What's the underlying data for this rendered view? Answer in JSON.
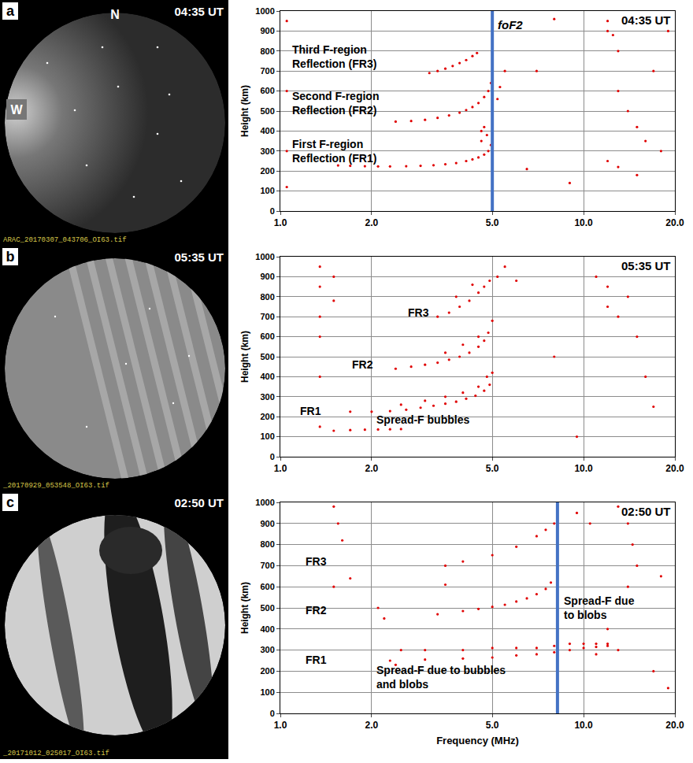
{
  "images": [
    {
      "panel": "a",
      "time": "04:35 UT",
      "north": "N",
      "west": "W",
      "file": "ARAC_20170307_043706_OI63.tif"
    },
    {
      "panel": "b",
      "time": "05:35 UT",
      "file": "_20170929_053548_OI63.tif"
    },
    {
      "panel": "c",
      "time": "02:50 UT",
      "file": "_20171012_025017_OI63.tif"
    }
  ],
  "chart_data": [
    {
      "type": "scatter",
      "time": "04:35 UT",
      "y_label": "Height (km)",
      "log": "x",
      "grid": true,
      "xlim": [
        1,
        20
      ],
      "xticks": [
        {
          "value": 1,
          "label": "1.0"
        },
        {
          "value": 2,
          "label": "2.0"
        },
        {
          "value": 5,
          "label": "5.0"
        },
        {
          "value": 10,
          "label": "10.0"
        },
        {
          "value": 20,
          "label": "20.0"
        }
      ],
      "ylim": [
        0,
        1000
      ],
      "yticks": [
        0,
        100,
        200,
        300,
        400,
        500,
        600,
        700,
        800,
        900,
        1000
      ],
      "series": [
        {
          "color": "#e00000",
          "marker": "dot",
          "x": [
            1.55,
            1.7,
            1.9,
            2.1,
            2.3,
            2.6,
            2.9,
            3.2,
            3.5,
            3.8,
            4.1,
            4.3,
            4.5,
            4.7,
            4.85,
            4.95
          ],
          "values": [
            228,
            226,
            224,
            223,
            223,
            224,
            226,
            229,
            234,
            240,
            250,
            258,
            268,
            282,
            300,
            330
          ]
        },
        {
          "color": "#e00000",
          "marker": "dot",
          "x": [
            2.4,
            2.7,
            3.0,
            3.3,
            3.6,
            3.9,
            4.1,
            4.3,
            4.5,
            4.7,
            4.85,
            4.95
          ],
          "values": [
            447,
            450,
            456,
            466,
            478,
            492,
            505,
            520,
            540,
            570,
            600,
            640
          ]
        },
        {
          "color": "#e00000",
          "marker": "dot",
          "x": [
            3.1,
            3.3,
            3.5,
            3.7,
            3.9,
            4.1,
            4.3,
            4.45
          ],
          "values": [
            690,
            700,
            712,
            725,
            740,
            755,
            775,
            790
          ]
        },
        {
          "color": "#e00000",
          "marker": "dot",
          "x": [
            1.05,
            1.05,
            1.05,
            1.05,
            4.6,
            4.6,
            4.7,
            4.8,
            5.2,
            5.3,
            5.5,
            12,
            12,
            12.5,
            13,
            13,
            14,
            15,
            16,
            12,
            13,
            15,
            17,
            18,
            19,
            8,
            9,
            7,
            6.5
          ],
          "values": [
            950,
            600,
            300,
            120,
            350,
            400,
            420,
            380,
            560,
            620,
            700,
            950,
            900,
            880,
            800,
            600,
            500,
            420,
            350,
            250,
            220,
            180,
            700,
            300,
            900,
            960,
            140,
            700,
            210
          ]
        }
      ],
      "annotations": [
        {
          "lines": [
            "Third F-region",
            "Reflection (FR3)"
          ],
          "x": 1.08,
          "y": 770
        },
        {
          "lines": [
            "Second F-region",
            "Reflection (FR2)"
          ],
          "x": 1.08,
          "y": 540
        },
        {
          "lines": [
            "First F-region",
            "Reflection (FR1)"
          ],
          "x": 1.08,
          "y": 300
        }
      ],
      "vlines": [
        {
          "x": 5.0,
          "label": "foF2",
          "color": "#4472c4"
        }
      ]
    },
    {
      "type": "scatter",
      "time": "05:35 UT",
      "y_label": "Height (km)",
      "log": "x",
      "grid": true,
      "xlim": [
        1,
        20
      ],
      "xticks": [
        {
          "value": 1,
          "label": "1.0"
        },
        {
          "value": 2,
          "label": "2.0"
        },
        {
          "value": 5,
          "label": "5.0"
        },
        {
          "value": 10,
          "label": "10.0"
        },
        {
          "value": 20,
          "label": "20.0"
        }
      ],
      "ylim": [
        0,
        1000
      ],
      "yticks": [
        0,
        100,
        200,
        300,
        400,
        500,
        600,
        700,
        800,
        900,
        1000
      ],
      "series": [
        {
          "color": "#e00000",
          "marker": "dot",
          "x": [
            1.7,
            2.0,
            2.3,
            2.6,
            2.9,
            3.2,
            3.5,
            3.8,
            4.1,
            4.4,
            4.7,
            4.9,
            5.0,
            2.5,
            3.0,
            3.5,
            4.0,
            4.5,
            4.8
          ],
          "values": [
            225,
            225,
            228,
            235,
            245,
            255,
            265,
            275,
            290,
            305,
            330,
            360,
            420,
            260,
            280,
            300,
            320,
            350,
            400
          ]
        },
        {
          "color": "#e00000",
          "marker": "dot",
          "x": [
            1.5,
            1.7,
            1.9,
            2.1,
            2.3,
            2.5
          ],
          "values": [
            130,
            133,
            135,
            136,
            137,
            138
          ]
        },
        {
          "color": "#e00000",
          "marker": "dot",
          "x": [
            2.4,
            2.7,
            3.0,
            3.3,
            3.6,
            3.9,
            4.2,
            4.5,
            4.7,
            4.85,
            5.0,
            3.5,
            4.0,
            4.5
          ],
          "values": [
            440,
            450,
            460,
            470,
            485,
            500,
            520,
            550,
            580,
            620,
            680,
            520,
            560,
            600
          ]
        },
        {
          "color": "#e00000",
          "marker": "dot",
          "x": [
            3.3,
            3.6,
            3.9,
            4.2,
            4.5,
            4.7,
            4.9,
            3.8,
            4.3
          ],
          "values": [
            700,
            720,
            750,
            780,
            820,
            850,
            880,
            800,
            860
          ]
        },
        {
          "color": "#e00000",
          "marker": "dot",
          "x": [
            1.35,
            1.35,
            1.35,
            1.35,
            1.35,
            1.35,
            1.5,
            1.5,
            5.2,
            5.5,
            11,
            12,
            12,
            13,
            14,
            15,
            16,
            17,
            9.5,
            8,
            6
          ],
          "values": [
            950,
            850,
            700,
            600,
            400,
            150,
            900,
            780,
            900,
            950,
            900,
            850,
            750,
            700,
            800,
            600,
            400,
            250,
            100,
            500,
            880
          ]
        }
      ],
      "annotations": [
        {
          "lines": [
            "FR3"
          ],
          "x": 2.6,
          "y": 720
        },
        {
          "lines": [
            "FR2"
          ],
          "x": 1.7,
          "y": 460
        },
        {
          "lines": [
            "FR1"
          ],
          "x": 1.15,
          "y": 230
        },
        {
          "lines": [
            "Spread-F bubbles"
          ],
          "x": 2.05,
          "y": 185
        }
      ]
    },
    {
      "type": "scatter",
      "time": "02:50 UT",
      "y_label": "Height (km)",
      "x_label": "Frequency (MHz)",
      "log": "x",
      "grid": true,
      "xlim": [
        1,
        20
      ],
      "xticks": [
        {
          "value": 1,
          "label": "1.0"
        },
        {
          "value": 2,
          "label": "2.0"
        },
        {
          "value": 5,
          "label": "5.0"
        },
        {
          "value": 10,
          "label": "10.0"
        },
        {
          "value": 20,
          "label": "20.0"
        }
      ],
      "ylim": [
        0,
        1000
      ],
      "yticks": [
        0,
        100,
        200,
        300,
        400,
        500,
        600,
        700,
        800,
        900,
        1000
      ],
      "series": [
        {
          "color": "#e00000",
          "marker": "dot",
          "x": [
            2.3,
            3,
            4,
            5,
            6,
            7,
            8,
            9,
            10,
            11,
            12,
            2.5,
            3,
            4,
            5,
            6,
            7,
            8,
            9,
            10,
            11,
            2.4
          ],
          "values": [
            250,
            255,
            260,
            265,
            275,
            280,
            290,
            300,
            310,
            315,
            320,
            300,
            300,
            300,
            310,
            310,
            310,
            320,
            330,
            330,
            330,
            230
          ]
        },
        {
          "color": "#e00000",
          "marker": "dot",
          "x": [
            3.3,
            4,
            4.5,
            5,
            5.5,
            6,
            6.5,
            7,
            7.5,
            7.8
          ],
          "values": [
            470,
            485,
            495,
            505,
            515,
            530,
            545,
            565,
            590,
            620
          ]
        },
        {
          "color": "#e00000",
          "marker": "dot",
          "x": [
            3.5,
            4,
            5,
            6,
            7,
            7.5,
            8
          ],
          "values": [
            700,
            720,
            750,
            790,
            840,
            870,
            900
          ]
        },
        {
          "color": "#e00000",
          "marker": "dot",
          "x": [
            1.5,
            1.55,
            1.6,
            1.5,
            1.7,
            2.1,
            2.2,
            3.5,
            13,
            14,
            14.5,
            15,
            14,
            12,
            13,
            17,
            18,
            19,
            10.5,
            9.5,
            11,
            12
          ],
          "values": [
            980,
            900,
            820,
            600,
            640,
            500,
            450,
            610,
            980,
            900,
            800,
            700,
            600,
            400,
            300,
            200,
            650,
            120,
            900,
            950,
            280,
            330
          ]
        }
      ],
      "annotations": [
        {
          "lines": [
            "FR3"
          ],
          "x": 1.2,
          "y": 720
        },
        {
          "lines": [
            "FR2"
          ],
          "x": 1.2,
          "y": 490
        },
        {
          "lines": [
            "FR1"
          ],
          "x": 1.2,
          "y": 255
        },
        {
          "lines": [
            "Spread-F due to bubbles",
            "and blobs"
          ],
          "x": 2.05,
          "y": 170
        },
        {
          "lines": [
            "Spread-F due",
            "to blobs"
          ],
          "x": 8.5,
          "y": 500
        }
      ],
      "vlines": [
        {
          "x": 8.2,
          "color": "#4472c4"
        }
      ]
    }
  ]
}
